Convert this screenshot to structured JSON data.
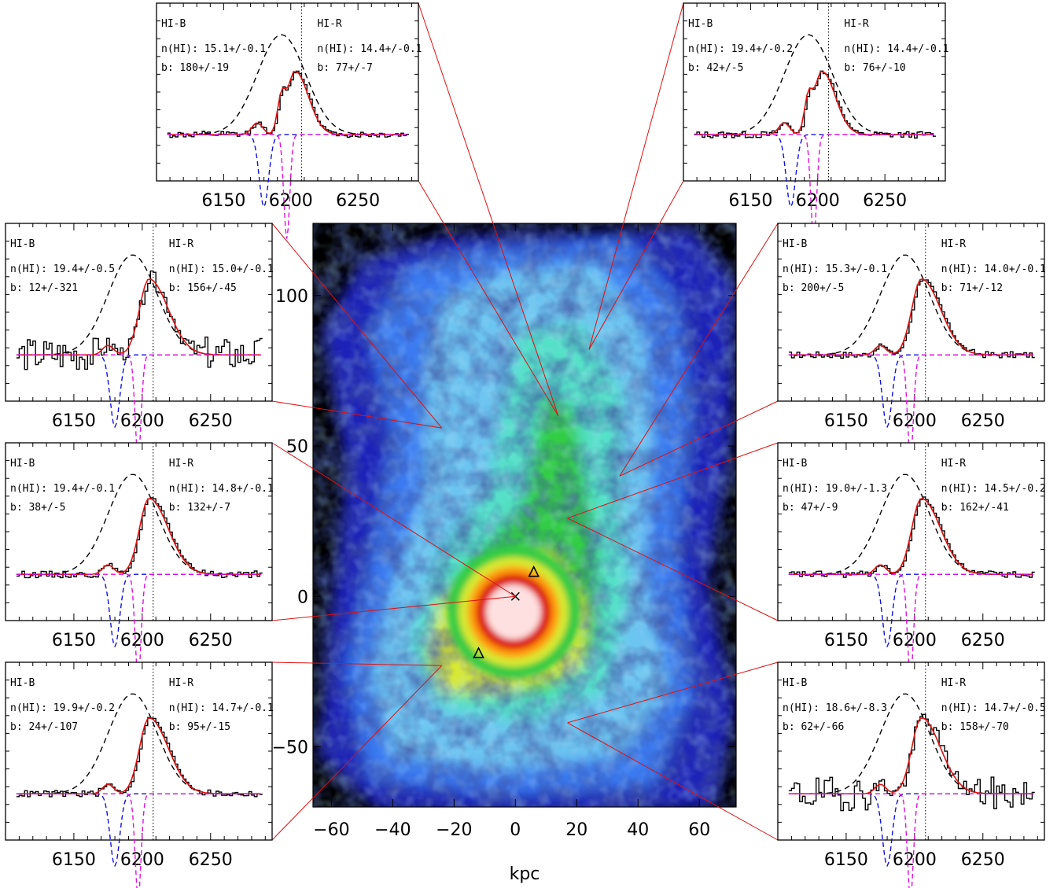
{
  "chart_data": {
    "map": {
      "type": "heatmap",
      "xlabel": "kpc",
      "ylabel": "",
      "xlim": [
        -66,
        72
      ],
      "ylim": [
        -70,
        124
      ],
      "xticks": [
        -60,
        -40,
        -20,
        0,
        20,
        40,
        60
      ],
      "yticks": [
        100,
        50,
        0,
        -50
      ],
      "colormap": [
        "#000000",
        "#1a22b8",
        "#3a7af0",
        "#6cc4f0",
        "#55e0c8",
        "#33cc44",
        "#d8e830",
        "#ff9a10",
        "#dd1111",
        "#ffe0e0"
      ],
      "markers": [
        {
          "symbol": "cross",
          "x": 0,
          "y": 0
        },
        {
          "symbol": "triangle",
          "x": 6,
          "y": 8
        },
        {
          "symbol": "triangle",
          "x": -12,
          "y": -19
        }
      ]
    },
    "spectra": [
      {
        "id": "top-left",
        "left_label": "HI-B",
        "right_label": "HI-R",
        "b_nhi": "n(HI): 15.1+/-0.1",
        "b_b": "b: 180+/-19",
        "r_nhi": "n(HI): 14.4+/-0.1",
        "r_b": "b: 77+/-7",
        "xticks": [
          6150,
          6200,
          6250
        ],
        "target": {
          "x": 14,
          "y": 60
        }
      },
      {
        "id": "top-right",
        "left_label": "HI-B",
        "right_label": "HI-R",
        "b_nhi": "n(HI): 19.4+/-0.2",
        "b_b": "b: 42+/-5",
        "r_nhi": "n(HI): 14.4+/-0.1",
        "r_b": "b: 76+/-10",
        "xticks": [
          6150,
          6200,
          6250
        ],
        "target": {
          "x": 24,
          "y": 82
        }
      },
      {
        "id": "left-1",
        "left_label": "HI-B",
        "right_label": "HI-R",
        "b_nhi": "n(HI): 19.4+/-0.5",
        "b_b": "b: 12+/-321",
        "r_nhi": "n(HI): 15.0+/-0.1",
        "r_b": "b: 156+/-45",
        "xticks": [
          6150,
          6200,
          6250
        ],
        "target": {
          "x": -24,
          "y": 56
        }
      },
      {
        "id": "left-2",
        "left_label": "HI-B",
        "right_label": "HI-R",
        "b_nhi": "n(HI): 19.4+/-0.1",
        "b_b": "b: 38+/-5",
        "r_nhi": "n(HI): 14.8+/-0.1",
        "r_b": "b: 132+/-7",
        "xticks": [
          6150,
          6200,
          6250
        ],
        "target": {
          "x": 0,
          "y": 0
        }
      },
      {
        "id": "left-3",
        "left_label": "HI-B",
        "right_label": "HI-R",
        "b_nhi": "n(HI): 19.9+/-0.2",
        "b_b": "b: 24+/-107",
        "r_nhi": "n(HI): 14.7+/-0.1",
        "r_b": "b: 95+/-15",
        "xticks": [
          6150,
          6200,
          6250
        ],
        "target": {
          "x": -24,
          "y": -23
        }
      },
      {
        "id": "right-1",
        "left_label": "HI-B",
        "right_label": "HI-R",
        "b_nhi": "n(HI): 15.3+/-0.1",
        "b_b": "b: 200+/-5",
        "r_nhi": "n(HI): 14.0+/-0.1",
        "r_b": "b: 71+/-12",
        "xticks": [
          6150,
          6200,
          6250
        ],
        "target": {
          "x": 34,
          "y": 40
        }
      },
      {
        "id": "right-2",
        "left_label": "HI-B",
        "right_label": "HI-R",
        "b_nhi": "n(HI): 19.0+/-1.3",
        "b_b": "b: 47+/-9",
        "r_nhi": "n(HI): 14.5+/-0.2",
        "r_b": "b: 162+/-41",
        "xticks": [
          6150,
          6200,
          6250
        ],
        "target": {
          "x": 17,
          "y": 26
        }
      },
      {
        "id": "right-3",
        "left_label": "HI-B",
        "right_label": "HI-R",
        "b_nhi": "n(HI): 18.6+/-8.3",
        "b_b": "b: 62+/-66",
        "r_nhi": "n(HI): 14.7+/-0.5",
        "r_b": "b: 158+/-70",
        "xticks": [
          6150,
          6200,
          6250
        ],
        "target": {
          "x": 17,
          "y": -42
        }
      }
    ]
  }
}
